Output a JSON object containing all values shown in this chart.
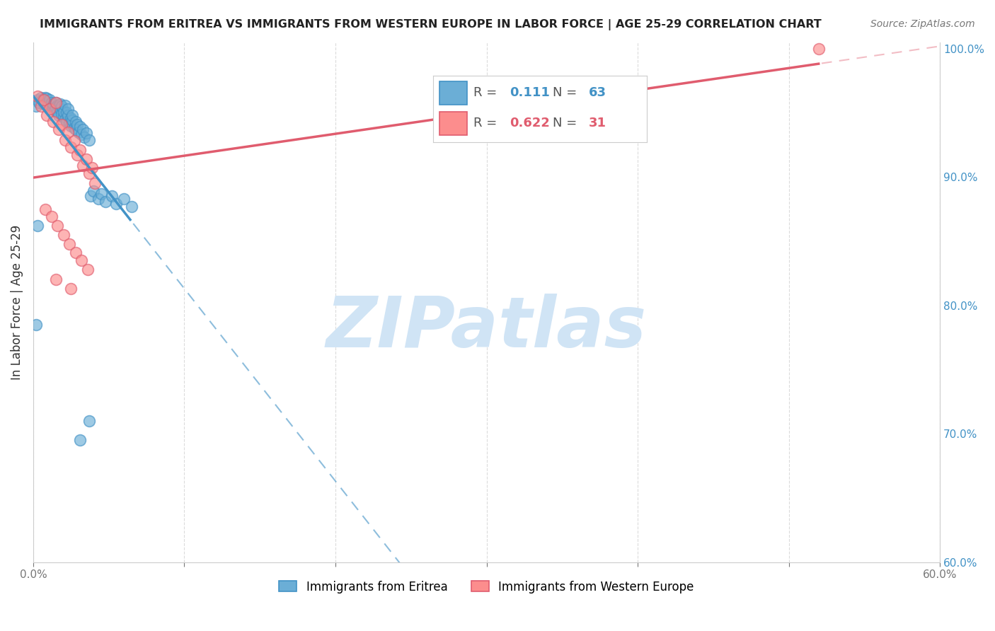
{
  "title": "IMMIGRANTS FROM ERITREA VS IMMIGRANTS FROM WESTERN EUROPE IN LABOR FORCE | AGE 25-29 CORRELATION CHART",
  "source": "Source: ZipAtlas.com",
  "ylabel": "In Labor Force | Age 25-29",
  "xmin": 0.0,
  "xmax": 0.6,
  "ymin": 0.6,
  "ymax": 1.005,
  "legend_R_blue": "0.111",
  "legend_N_blue": "63",
  "legend_R_pink": "0.622",
  "legend_N_pink": "31",
  "blue_color": "#6baed6",
  "pink_color": "#fc8d8d",
  "line_blue": "#4292c6",
  "line_pink": "#e05c6e",
  "watermark": "ZIPatlas",
  "watermark_color": "#d0e4f5",
  "blue_points_x": [
    0.002,
    0.003,
    0.004,
    0.005,
    0.006,
    0.007,
    0.008,
    0.008,
    0.009,
    0.01,
    0.01,
    0.011,
    0.012,
    0.013,
    0.013,
    0.014,
    0.015,
    0.015,
    0.016,
    0.016,
    0.017,
    0.017,
    0.018,
    0.018,
    0.019,
    0.019,
    0.02,
    0.02,
    0.021,
    0.021,
    0.022,
    0.022,
    0.023,
    0.023,
    0.024,
    0.025,
    0.025,
    0.026,
    0.026,
    0.027,
    0.028,
    0.028,
    0.029,
    0.03,
    0.031,
    0.032,
    0.033,
    0.034,
    0.035,
    0.037,
    0.038,
    0.04,
    0.043,
    0.045,
    0.048,
    0.052,
    0.055,
    0.06,
    0.065,
    0.002,
    0.003,
    0.037,
    0.031
  ],
  "blue_points_y": [
    0.955,
    0.96,
    0.958,
    0.962,
    0.96,
    0.957,
    0.962,
    0.959,
    0.961,
    0.955,
    0.956,
    0.96,
    0.958,
    0.953,
    0.957,
    0.952,
    0.958,
    0.954,
    0.956,
    0.95,
    0.955,
    0.948,
    0.953,
    0.957,
    0.949,
    0.955,
    0.947,
    0.951,
    0.956,
    0.945,
    0.95,
    0.943,
    0.948,
    0.953,
    0.942,
    0.946,
    0.94,
    0.944,
    0.948,
    0.938,
    0.943,
    0.937,
    0.941,
    0.935,
    0.939,
    0.933,
    0.937,
    0.931,
    0.934,
    0.929,
    0.885,
    0.889,
    0.883,
    0.887,
    0.881,
    0.885,
    0.879,
    0.883,
    0.877,
    0.785,
    0.862,
    0.71,
    0.695
  ],
  "pink_points_x": [
    0.003,
    0.005,
    0.007,
    0.009,
    0.011,
    0.013,
    0.015,
    0.017,
    0.019,
    0.021,
    0.023,
    0.025,
    0.027,
    0.029,
    0.031,
    0.033,
    0.035,
    0.037,
    0.039,
    0.041,
    0.008,
    0.012,
    0.016,
    0.02,
    0.024,
    0.028,
    0.032,
    0.036,
    0.015,
    0.025,
    0.52
  ],
  "pink_points_y": [
    0.963,
    0.955,
    0.96,
    0.948,
    0.953,
    0.943,
    0.958,
    0.937,
    0.941,
    0.929,
    0.935,
    0.923,
    0.928,
    0.917,
    0.921,
    0.909,
    0.914,
    0.903,
    0.907,
    0.895,
    0.875,
    0.869,
    0.862,
    0.855,
    0.848,
    0.841,
    0.835,
    0.828,
    0.82,
    0.813,
    1.0
  ],
  "grid_color": "#cccccc",
  "bg_color": "#ffffff"
}
